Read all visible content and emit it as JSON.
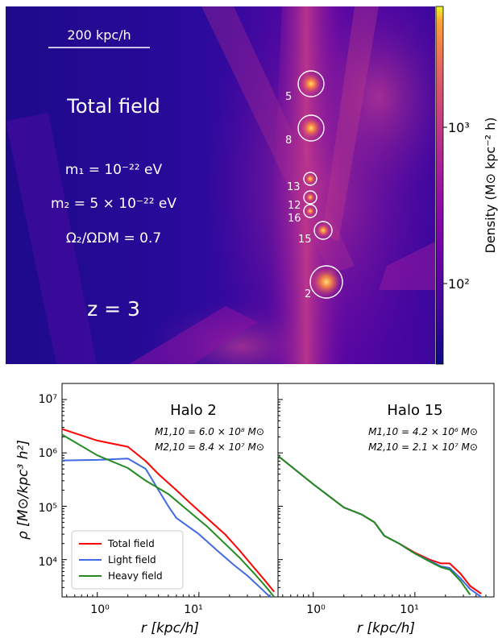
{
  "top_panel": {
    "scale_bar": "200 kpc/h",
    "field_title": "Total field",
    "m1": "m₁ = 10⁻²² eV",
    "m2": "m₂ = 5 × 10⁻²² eV",
    "omega_ratio": "Ω₂/ΩDM = 0.7",
    "redshift": "z = 3",
    "halo_labels": [
      "5",
      "8",
      "13",
      "12",
      "16",
      "15",
      "2"
    ],
    "colorbar": {
      "label": "Density (M⊙ kpc⁻² h)",
      "colormap": "plasma",
      "scale": "log",
      "ticks": [
        "10³",
        "10²"
      ]
    }
  },
  "bottom_panels": {
    "ylabel": "ρ [M⊙/kpc³ h²]",
    "xlabel": "r [kpc/h]",
    "y_ticks": [
      "10⁷",
      "10⁶",
      "10⁵",
      "10⁴"
    ],
    "x_tick": "10⁰",
    "x_tick2": "10¹",
    "legend": [
      "Total field",
      "Light field",
      "Heavy field"
    ],
    "colors": {
      "total": "#ff0000",
      "light": "#4169e1",
      "heavy": "#228b22"
    }
  },
  "chart_data": [
    {
      "type": "line",
      "title": "Halo 2",
      "annotation_1": "M1,10 = 6.0 × 10⁸ M⊙",
      "annotation_2": "M2,10 = 8.4 × 10⁷ M⊙",
      "xlabel": "r [kpc/h]",
      "ylabel": "ρ [M⊙/kpc³ h²]",
      "xscale": "log",
      "yscale": "log",
      "xlim": [
        0.45,
        60
      ],
      "ylim": [
        2000,
        20000000
      ],
      "legend_position": "lower-left",
      "series": [
        {
          "name": "Total field",
          "x": [
            0.45,
            1.0,
            2.0,
            3.0,
            4.0,
            6.0,
            8.0,
            12,
            18,
            25,
            35,
            45,
            55
          ],
          "y": [
            2800000,
            1700000,
            1300000,
            700000,
            400000,
            200000,
            120000,
            60000,
            30000,
            15000,
            7000,
            4000,
            2500
          ]
        },
        {
          "name": "Light field",
          "x": [
            0.45,
            1.0,
            2.0,
            3.0,
            4.0,
            5.0,
            6.0,
            10,
            15,
            22,
            30,
            40,
            50
          ],
          "y": [
            720000,
            740000,
            780000,
            500000,
            200000,
            100000,
            60000,
            30000,
            15000,
            8000,
            5000,
            3000,
            2000
          ]
        },
        {
          "name": "Heavy field",
          "x": [
            0.45,
            1.0,
            2.0,
            3.0,
            5.0,
            8.0,
            12,
            18,
            25,
            35,
            45,
            55
          ],
          "y": [
            2200000,
            900000,
            520000,
            300000,
            170000,
            80000,
            42000,
            20000,
            11000,
            5500,
            3200,
            2000
          ]
        }
      ]
    },
    {
      "type": "line",
      "title": "Halo 15",
      "annotation_1": "M1,10 = 4.2 × 10⁶ M⊙",
      "annotation_2": "M2,10 = 2.1 × 10⁷ M⊙",
      "xlabel": "r [kpc/h]",
      "xscale": "log",
      "yscale": "log",
      "xlim": [
        0.45,
        60
      ],
      "ylim": [
        2000,
        20000000
      ],
      "series": [
        {
          "name": "Total field",
          "x": [
            0.45,
            1.0,
            2.0,
            3.0,
            4.0,
            5.0,
            7.0,
            10,
            14,
            18,
            22,
            28,
            35,
            45
          ],
          "y": [
            880000,
            260000,
            95000,
            70000,
            50000,
            28000,
            20000,
            13500,
            10000,
            8500,
            8500,
            5500,
            3200,
            2300
          ]
        },
        {
          "name": "Light field",
          "x": [
            0.45,
            1.0,
            2.0,
            3.0,
            4.0,
            5.0,
            7.0,
            10,
            14,
            18,
            22,
            28,
            35,
            45
          ],
          "y": [
            880000,
            260000,
            95000,
            70000,
            50000,
            28000,
            20000,
            13000,
            9500,
            7500,
            7000,
            4500,
            2800,
            2000
          ]
        },
        {
          "name": "Heavy field",
          "x": [
            0.45,
            1.0,
            2.0,
            3.0,
            4.0,
            5.0,
            7.0,
            10,
            14,
            18,
            22,
            28,
            35
          ],
          "y": [
            880000,
            260000,
            95000,
            70000,
            50000,
            28000,
            20000,
            13000,
            9200,
            7200,
            6500,
            4000,
            2200
          ]
        }
      ]
    }
  ]
}
